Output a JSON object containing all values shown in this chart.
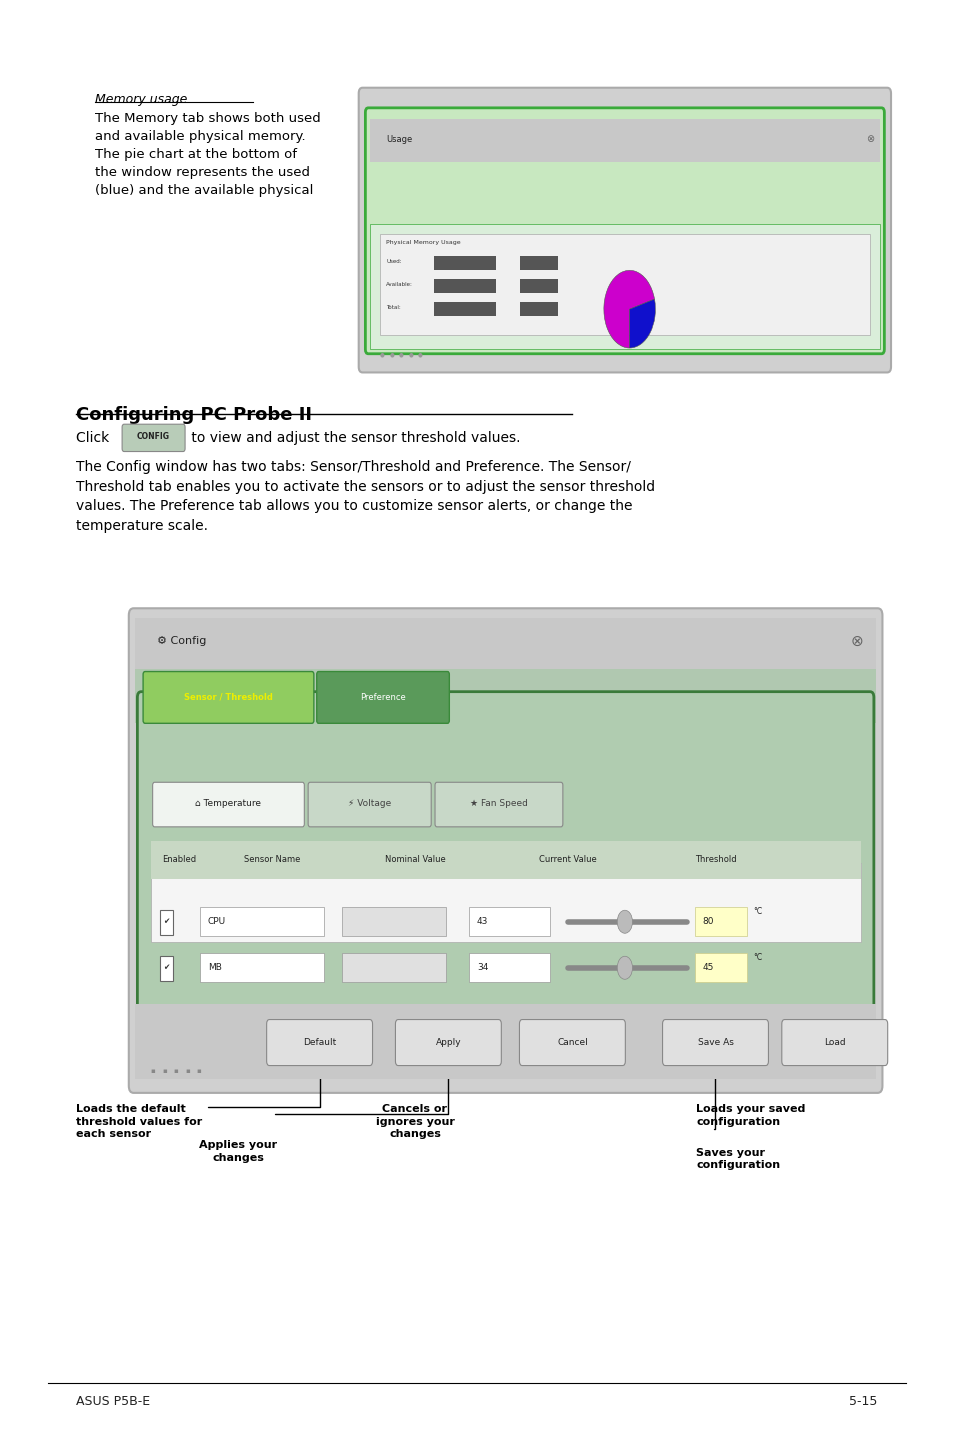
{
  "page_bg": "#ffffff",
  "section_label_italic": "Memory usage",
  "body_text_1": "The Memory tab shows both used\nand available physical memory.\nThe pie chart at the bottom of\nthe window represents the used\n(blue) and the available physical",
  "section_heading": "Configuring PC Probe II",
  "para1_pre": "Click ",
  "para1_btn": "CONFIG",
  "para1_post": " to view and adjust the sensor threshold values.",
  "para2": "The Config window has two tabs: Sensor/Threshold and Preference. The Sensor/\nThreshold tab enables you to activate the sensors or to adjust the sensor threshold\nvalues. The Preference tab allows you to customize sensor alerts, or change the\ntemperature scale.",
  "footer_left": "ASUS P5B-E",
  "footer_right": "5-15",
  "annotation_1": "Loads the default\nthreshold values for\neach sensor",
  "annotation_2": "Applies your\nchanges",
  "annotation_3": "Cancels or\nignores your\nchanges",
  "annotation_4": "Loads your saved\nconfiguration",
  "annotation_5": "Saves your\nconfiguration",
  "text_color": "#000000",
  "heading_color": "#000000"
}
